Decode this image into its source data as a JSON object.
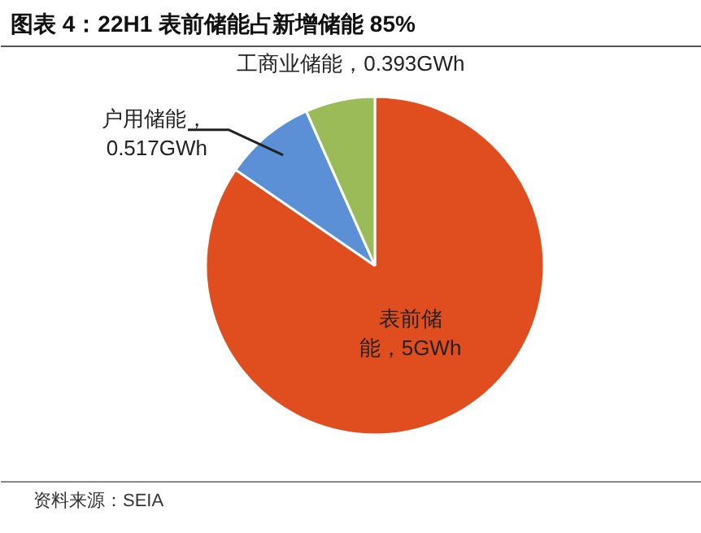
{
  "chart_data": {
    "type": "pie",
    "title": "图表 4：22H1 表前储能占新增储能 85%",
    "categories": [
      "表前储能",
      "户用储能",
      "工商业储能"
    ],
    "values": [
      5,
      0.517,
      0.393
    ],
    "value_labels": [
      "，5GWh",
      "，0.517GWh",
      "，0.393GWh"
    ],
    "colors": [
      "#e04e1f",
      "#5b8fd6",
      "#9bbb59"
    ],
    "annotations": [
      "资料来源：SEIA"
    ]
  }
}
